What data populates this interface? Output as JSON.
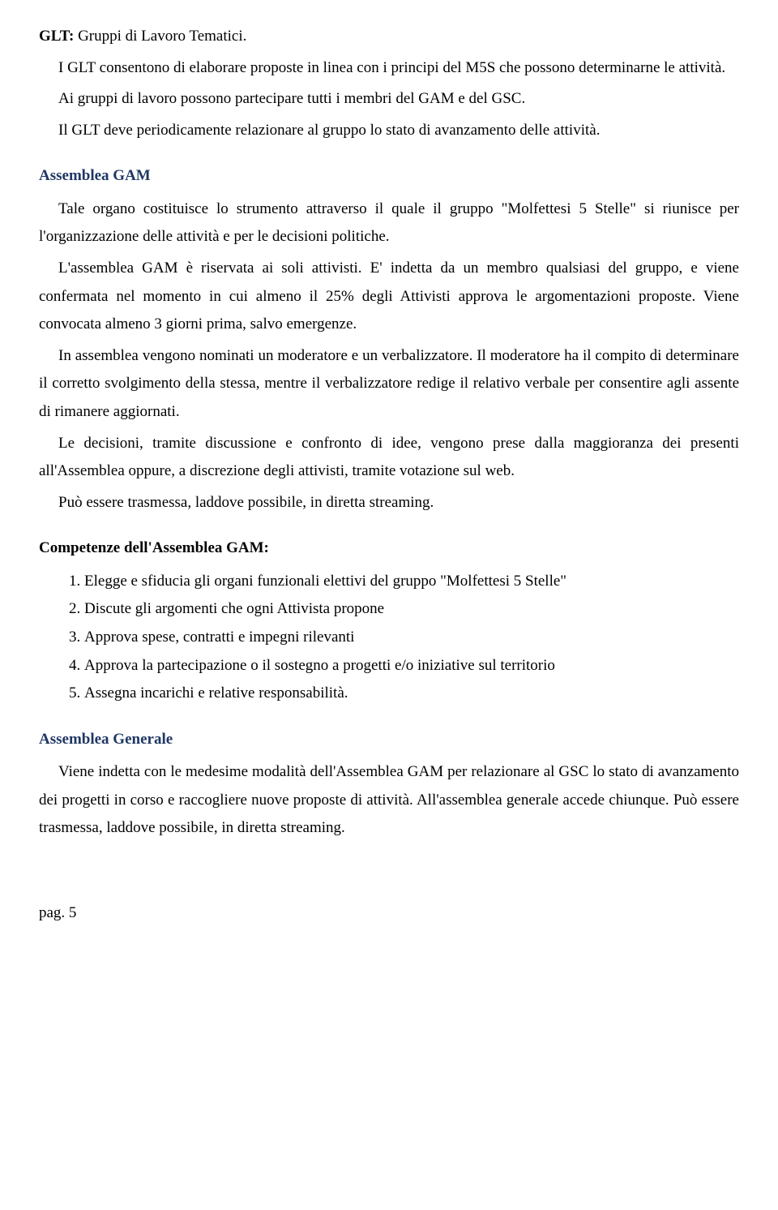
{
  "colors": {
    "text": "#000000",
    "background": "#ffffff",
    "blue_heading": "#1f3763"
  },
  "typography": {
    "font_family": "Times New Roman",
    "body_fontsize": 19,
    "line_height": 1.82
  },
  "glt": {
    "label": "GLT:",
    "label_text": "Gruppi di Lavoro Tematici.",
    "p1": "I GLT consentono di elaborare proposte in linea con i principi del M5S che possono determinarne le attività.",
    "p2": "Ai gruppi di lavoro possono partecipare tutti i membri del GAM e del GSC.",
    "p3": "Il GLT deve periodicamente relazionare al gruppo lo stato di avanzamento delle attività."
  },
  "assemblea_gam": {
    "title": "Assemblea GAM",
    "p1": "Tale organo costituisce lo strumento attraverso il quale il gruppo \"Molfettesi 5 Stelle\" si riunisce per l'organizzazione delle attività e per le decisioni politiche.",
    "p2": "L'assemblea GAM è riservata ai soli attivisti. E' indetta da un membro qualsiasi del gruppo, e viene confermata nel momento in cui almeno il 25% degli Attivisti approva le argomentazioni proposte. Viene convocata almeno 3 giorni prima, salvo emergenze.",
    "p3": "In assemblea vengono nominati un moderatore e un verbalizzatore. Il moderatore ha il compito di determinare il corretto svolgimento della stessa, mentre il verbalizzatore  redige il relativo verbale per consentire agli assente di rimanere aggiornati.",
    "p4": "Le decisioni, tramite discussione e confronto di idee, vengono prese dalla maggioranza dei presenti all'Assemblea oppure, a discrezione degli attivisti, tramite votazione sul web.",
    "p5": "Può essere trasmessa, laddove possibile, in diretta streaming."
  },
  "competenze": {
    "title": "Competenze dell'Assemblea GAM:",
    "items": [
      "Elegge e sfiducia gli organi funzionali elettivi del gruppo \"Molfettesi 5 Stelle\"",
      "Discute gli argomenti che ogni Attivista propone",
      "Approva spese, contratti e impegni rilevanti",
      "Approva la partecipazione o il sostegno a progetti e/o iniziative sul territorio",
      "Assegna incarichi e relative responsabilità."
    ]
  },
  "assemblea_generale": {
    "title": "Assemblea Generale",
    "p1": "Viene indetta con le medesime modalità dell'Assemblea GAM per relazionare al GSC lo stato di avanzamento dei progetti in corso e raccogliere nuove proposte di attività. All'assemblea generale accede chiunque. Può essere trasmessa, laddove possibile, in diretta streaming."
  },
  "footer": {
    "page_label": "pag. 5"
  }
}
